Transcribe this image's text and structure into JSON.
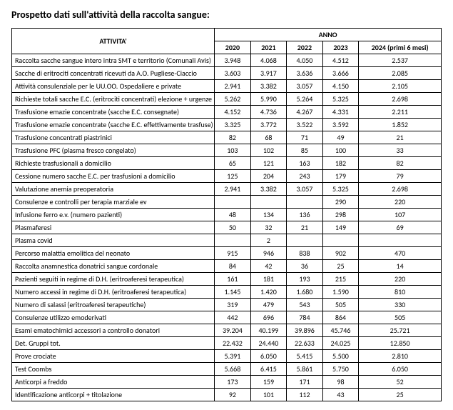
{
  "title": "Prospetto dati sull'attività della raccolta sangue:",
  "header_activity": "ATTIVITA'",
  "header_year": "ANNO",
  "years": [
    "2020",
    "2021",
    "2022",
    "2023",
    "2024 (primi 6 mesi)"
  ],
  "rows": [
    {
      "label": "Raccolta sacche sangue intero intra SMT e territorio (Comunali Avis)",
      "values": [
        "3.948",
        "4.068",
        "4.050",
        "4.512",
        "2.537"
      ]
    },
    {
      "label": "Sacche di eritrociti concentrati ricevuti da A.O. Pugliese-Ciaccio",
      "values": [
        "3.603",
        "3.917",
        "3.636",
        "3.666",
        "2.085"
      ]
    },
    {
      "label": "Attività consulenziale per le UU.OO. Ospedaliere e private",
      "values": [
        "2.941",
        "3.382",
        "3.057",
        "4.150",
        "2.105"
      ]
    },
    {
      "label": "Richieste totali sacche E.C. (eritrociti concentrati) elezione + urgenze",
      "values": [
        "5.262",
        "5.990",
        "5.264",
        "5.325",
        "2.698"
      ]
    },
    {
      "label": "Trasfusione emazie concentrate (sacche E.C. consegnate)",
      "values": [
        "4.152",
        "4.736",
        "4.267",
        "4.331",
        "2.211"
      ]
    },
    {
      "label": "Trasfusione emazie concentrate (sacche E.C. effettivamente trasfuse)",
      "values": [
        "3.325",
        "3.772",
        "3.522",
        "3.592",
        "1.852"
      ]
    },
    {
      "label": "Trasfusione concentrati piastrinici",
      "values": [
        "82",
        "68",
        "71",
        "49",
        "21"
      ]
    },
    {
      "label": "Trasfusione PFC (plasma fresco congelato)",
      "values": [
        "103",
        "102",
        "85",
        "100",
        "33"
      ]
    },
    {
      "label": "Richieste trasfusionali a domicilio",
      "values": [
        "65",
        "121",
        "163",
        "182",
        "82"
      ]
    },
    {
      "label": "Cessione numero sacche E.C. per trasfusioni a domicilio",
      "values": [
        "125",
        "204",
        "243",
        "179",
        "79"
      ]
    },
    {
      "label": "Valutazione anemia preoperatoria",
      "values": [
        "2.941",
        "3.382",
        "3.057",
        "5.325",
        "2.698"
      ]
    },
    {
      "label": "Consulenze e controlli per terapia marziale ev",
      "values": [
        "",
        "",
        "",
        "290",
        "220"
      ]
    },
    {
      "label": "Infusione ferro e.v. (numero pazienti)",
      "values": [
        "48",
        "134",
        "136",
        "298",
        "107"
      ]
    },
    {
      "label": "Plasmaferesi",
      "values": [
        "50",
        "32",
        "21",
        "149",
        "69"
      ]
    },
    {
      "label": "Plasma covid",
      "values": [
        "",
        "2",
        "",
        "",
        ""
      ]
    },
    {
      "label": "Percorso malattia emolitica del neonato",
      "values": [
        "915",
        "946",
        "838",
        "902",
        "470"
      ]
    },
    {
      "label": "Raccolta anamnestica donatrici sangue cordonale",
      "values": [
        "84",
        "42",
        "36",
        "25",
        "14"
      ]
    },
    {
      "label": "Pazienti seguiti in regime di D.H. (eritroaferesi terapeutica)",
      "values": [
        "161",
        "181",
        "193",
        "215",
        "220"
      ]
    },
    {
      "label": "Numero accessi in regime di D.H. (eritroaferesi terapeutica)",
      "values": [
        "1.145",
        "1.420",
        "1.680",
        "1.590",
        "810"
      ]
    },
    {
      "label": "Numero di salassi (eritroaferesi terapeutiche)",
      "values": [
        "319",
        "479",
        "543",
        "505",
        "330"
      ]
    },
    {
      "label": "Consulenze utilizzo emoderivati",
      "values": [
        "442",
        "696",
        "784",
        "864",
        "505"
      ]
    },
    {
      "label": "Esami ematochimici accessori a controllo donatori",
      "values": [
        "39.204",
        "40.199",
        "39.896",
        "45.746",
        "25.721"
      ]
    },
    {
      "label": "Det. Gruppi tot.",
      "values": [
        "22.432",
        "24.440",
        "22.633",
        "24.025",
        "12.850"
      ]
    },
    {
      "label": "Prove crociate",
      "values": [
        "5.391",
        "6.050",
        "5.415",
        "5.500",
        "2.810"
      ]
    },
    {
      "label": "Test Coombs",
      "values": [
        "5.668",
        "6.415",
        "5.861",
        "5.750",
        "6.050"
      ]
    },
    {
      "label": "Anticorpi a freddo",
      "values": [
        "173",
        "159",
        "171",
        "98",
        "52"
      ]
    },
    {
      "label": "Identificazione anticorpi + titolazione",
      "values": [
        "92",
        "101",
        "112",
        "43",
        "25"
      ]
    }
  ]
}
